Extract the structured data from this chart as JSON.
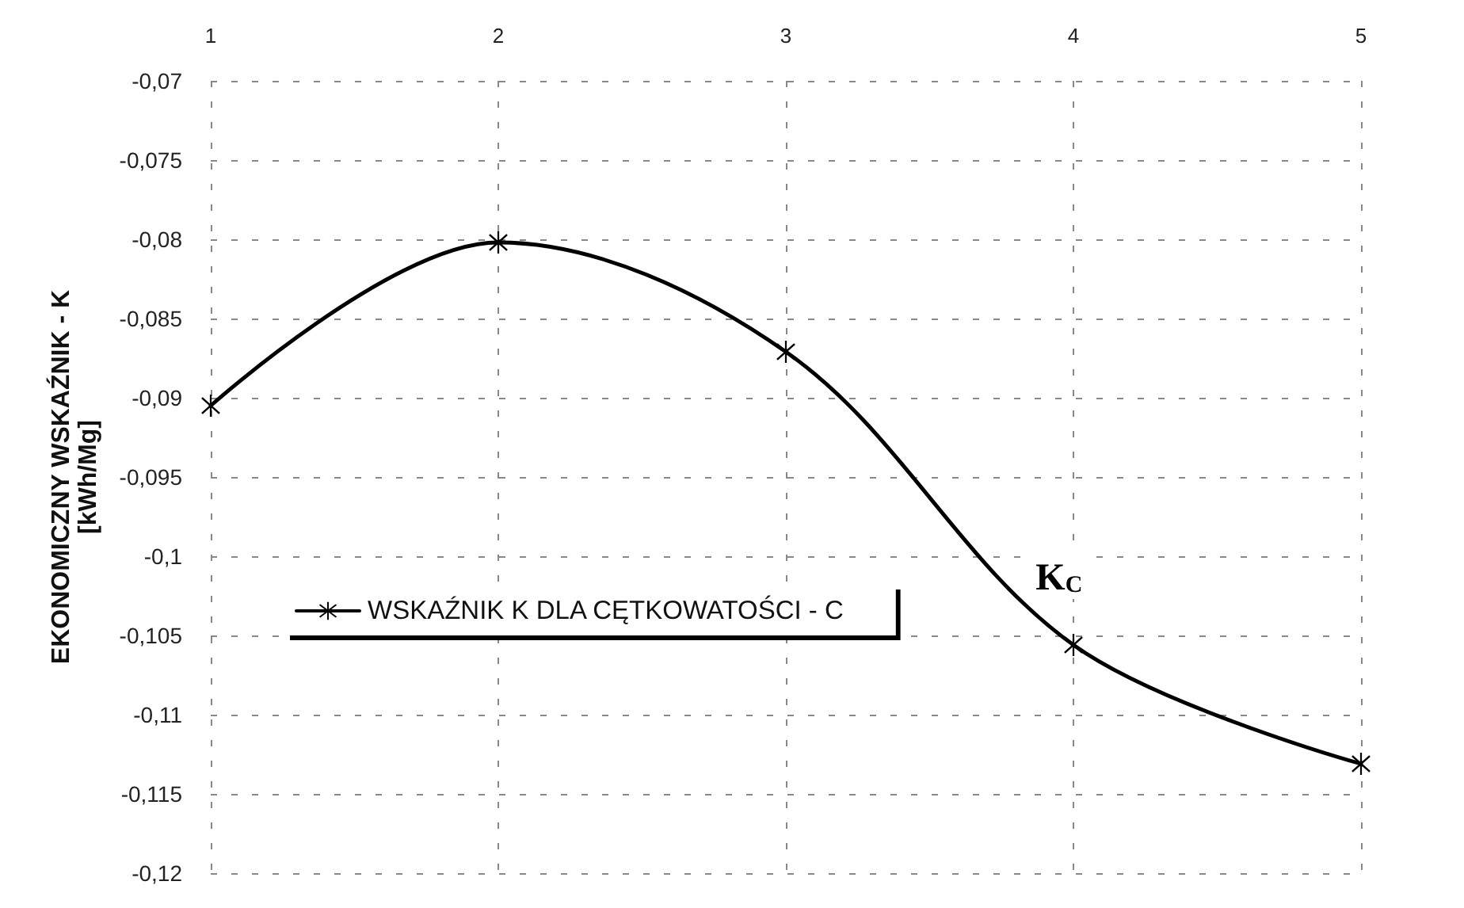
{
  "chart_data": {
    "type": "line",
    "x": [
      1,
      2,
      3,
      4,
      5
    ],
    "xlim": [
      1,
      5
    ],
    "xticks": [
      1,
      2,
      3,
      4,
      5
    ],
    "ylim": [
      -0.12,
      -0.07
    ],
    "yticks": [
      {
        "value": -0.12,
        "label": "-0,12"
      },
      {
        "value": -0.115,
        "label": "-0,115"
      },
      {
        "value": -0.11,
        "label": "-0,11"
      },
      {
        "value": -0.105,
        "label": "-0,105"
      },
      {
        "value": -0.1,
        "label": "-0,1"
      },
      {
        "value": -0.095,
        "label": "-0,095"
      },
      {
        "value": -0.09,
        "label": "-0,09"
      },
      {
        "value": -0.085,
        "label": "-0,085"
      },
      {
        "value": -0.08,
        "label": "-0,08"
      },
      {
        "value": -0.075,
        "label": "-0,075"
      },
      {
        "value": -0.07,
        "label": "-0,07"
      }
    ],
    "ylabel": "EKONOMICZNY WSKAŹNIK - K\n[kWh/Mg]",
    "series": [
      {
        "name": "WSKAŹNIK K DLA CĘTKOWATOŚCI - C",
        "color": "#000000",
        "values": [
          -0.0905,
          -0.0802,
          -0.0871,
          -0.1056,
          -0.1131
        ]
      }
    ],
    "annotations": [
      {
        "text": "K$_{C}$",
        "x": 3.95,
        "y": -0.1012
      }
    ],
    "grid": true,
    "legend": "bottom left",
    "marker": "cross",
    "line_style": "solid"
  }
}
